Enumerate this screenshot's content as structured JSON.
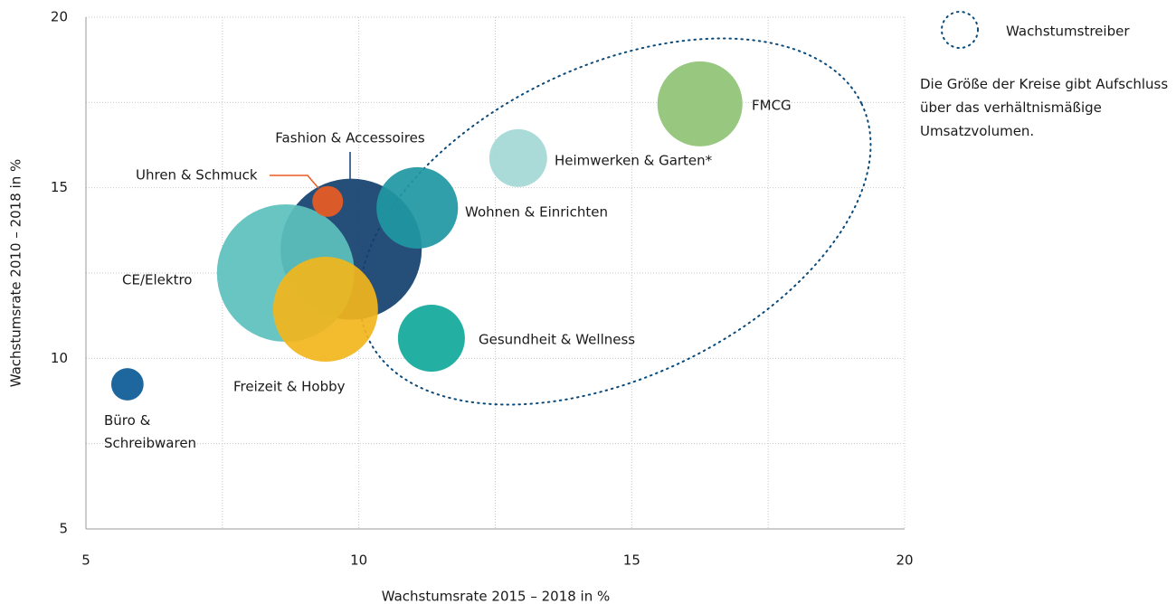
{
  "chart_data": {
    "type": "bubble",
    "xlabel": "Wachstumsrate 2015 – 2018 in %",
    "ylabel": "Wachstumsrate 2010 – 2018 in %",
    "xlim": [
      5,
      20
    ],
    "ylim": [
      5,
      20
    ],
    "xticks": [
      5,
      10,
      15,
      20
    ],
    "yticks": [
      5,
      10,
      15,
      20
    ],
    "minor_xticks": [
      7.5,
      12.5,
      17.5
    ],
    "minor_yticks": [
      7.5,
      12.5,
      17.5
    ],
    "grid": true,
    "legend": {
      "label": "Wachstumstreiber",
      "note": "Die Größe der Kreise gibt Aufschluss über das verhält­nismäßige Umsatzvolumen."
    },
    "series": [
      {
        "name": "Fashion & Accessoires",
        "color": "#12406e",
        "x": [
          9.86
        ],
        "values": [
          13.2
        ],
        "sizes": [
          60.8
        ]
      },
      {
        "name": "CE/Elektro",
        "color": "#5cc0bd",
        "x": [
          8.66
        ],
        "values": [
          12.5
        ],
        "sizes": [
          57.8
        ]
      },
      {
        "name": "Freizeit & Hobby",
        "color": "#f2b51c",
        "x": [
          9.39
        ],
        "values": [
          11.44
        ],
        "sizes": [
          33.6
        ]
      },
      {
        "name": "Wohnen & Einrichten",
        "color": "#1e97a3",
        "x": [
          11.07
        ],
        "values": [
          14.41
        ],
        "sizes": [
          20.3
        ]
      },
      {
        "name": "Gesundheit & Wellness",
        "color": "#10a899",
        "x": [
          11.33
        ],
        "values": [
          10.59
        ],
        "sizes": [
          13.7
        ]
      },
      {
        "name": "Heimwerken & Garten*",
        "color": "#a3d8d6",
        "x": [
          12.92
        ],
        "values": [
          15.87
        ],
        "sizes": [
          10.2
        ]
      },
      {
        "name": "FMCG",
        "color": "#8fc375",
        "x": [
          16.25
        ],
        "values": [
          17.46
        ],
        "sizes": [
          22.1
        ]
      },
      {
        "name": "Büro & Schreibwaren",
        "color": "#0a5a96",
        "x": [
          5.76
        ],
        "values": [
          9.24
        ],
        "sizes": [
          3.2
        ]
      },
      {
        "name": "Uhren & Schmuck",
        "color": "#ea5b23",
        "x": [
          9.43
        ],
        "values": [
          14.6
        ],
        "sizes": [
          2.9
        ]
      }
    ]
  }
}
